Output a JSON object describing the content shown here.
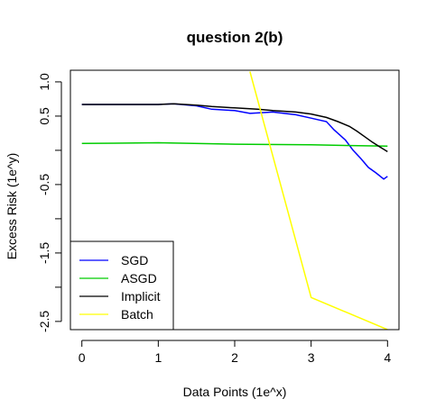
{
  "chart_data": {
    "type": "line",
    "title": "question 2(b)",
    "xlabel": "Data Points (1e^x)",
    "ylabel": "Excess Risk (1e^y)",
    "xlim": [
      -0.15,
      4.15
    ],
    "ylim": [
      -2.62,
      1.17
    ],
    "x_ticks": [
      "0",
      "1",
      "2",
      "3",
      "4"
    ],
    "y_ticks": [
      "1.0",
      "0.5",
      "-0.5",
      "-1.5",
      "-2.5"
    ],
    "y_minor_ticks": [
      0.0,
      -1.0,
      -2.0
    ],
    "grid": false,
    "legend_position": "bottom-left",
    "series": [
      {
        "name": "SGD",
        "color": "#0000ff",
        "x": [
          0,
          0.5,
          1.0,
          1.2,
          1.5,
          1.7,
          2.0,
          2.2,
          2.5,
          2.8,
          3.0,
          3.2,
          3.3,
          3.45,
          3.55,
          3.65,
          3.75,
          3.85,
          3.95,
          4.0
        ],
        "y": [
          0.67,
          0.67,
          0.67,
          0.68,
          0.65,
          0.6,
          0.58,
          0.54,
          0.56,
          0.52,
          0.47,
          0.42,
          0.3,
          0.15,
          0.0,
          -0.12,
          -0.25,
          -0.33,
          -0.42,
          -0.38
        ]
      },
      {
        "name": "ASGD",
        "color": "#00cc00",
        "x": [
          0,
          1.0,
          2.0,
          3.0,
          4.0
        ],
        "y": [
          0.1,
          0.11,
          0.09,
          0.08,
          0.06
        ]
      },
      {
        "name": "Implicit",
        "color": "#000000",
        "x": [
          0,
          0.5,
          1.0,
          1.2,
          1.5,
          1.7,
          2.0,
          2.3,
          2.5,
          2.8,
          3.0,
          3.2,
          3.35,
          3.5,
          3.6,
          3.7,
          3.8,
          3.9,
          4.0
        ],
        "y": [
          0.67,
          0.67,
          0.67,
          0.68,
          0.66,
          0.64,
          0.62,
          0.6,
          0.58,
          0.56,
          0.53,
          0.48,
          0.42,
          0.35,
          0.28,
          0.2,
          0.12,
          0.05,
          -0.02
        ]
      },
      {
        "name": "Batch",
        "color": "#ffff00",
        "x": [
          2.2,
          3.0,
          4.0
        ],
        "y": [
          1.15,
          -2.15,
          -2.62
        ]
      }
    ]
  }
}
